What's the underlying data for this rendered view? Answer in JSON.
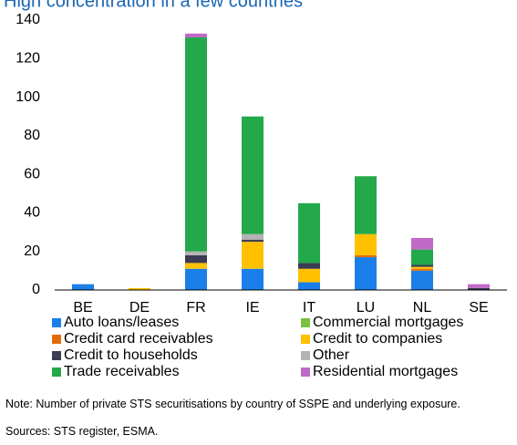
{
  "chart_data": {
    "type": "stacked_bar",
    "title": "High concentration in a few countries",
    "categories": [
      "BE",
      "DE",
      "FR",
      "IE",
      "IT",
      "LU",
      "NL",
      "SE"
    ],
    "series": [
      {
        "name": "Auto loans/leases",
        "color": "#1a7fe8",
        "values": [
          3,
          0,
          11,
          11,
          4,
          17,
          10,
          0
        ]
      },
      {
        "name": "Commercial mortgages",
        "color": "#7ac142",
        "values": [
          0,
          0,
          0,
          0,
          0,
          0,
          0,
          0
        ]
      },
      {
        "name": "Credit card receivables",
        "color": "#e36c0a",
        "values": [
          0,
          0,
          0,
          0,
          0,
          1,
          1,
          0
        ]
      },
      {
        "name": "Credit to companies",
        "color": "#ffc000",
        "values": [
          0,
          1,
          3,
          14,
          7,
          11,
          1,
          0
        ]
      },
      {
        "name": "Credit to households",
        "color": "#3b3b52",
        "values": [
          0,
          0,
          4,
          1,
          3,
          0,
          1,
          1
        ]
      },
      {
        "name": "Other",
        "color": "#b3b3b3",
        "values": [
          0,
          0,
          2,
          3,
          0,
          0,
          0,
          0
        ]
      },
      {
        "name": "Trade receivables",
        "color": "#23a84a",
        "values": [
          0,
          0,
          111,
          61,
          31,
          30,
          8,
          0
        ]
      },
      {
        "name": "Residential mortgages",
        "color": "#c06ac8",
        "values": [
          0,
          0,
          2,
          0,
          0,
          0,
          6,
          2
        ]
      }
    ],
    "ylim": [
      0,
      140
    ],
    "yticks": [
      0,
      20,
      40,
      60,
      80,
      100,
      120,
      140
    ],
    "note": "Note: Number of private STS securitisations by country of SSPE and underlying exposure.",
    "source": "Sources: STS register, ESMA."
  }
}
